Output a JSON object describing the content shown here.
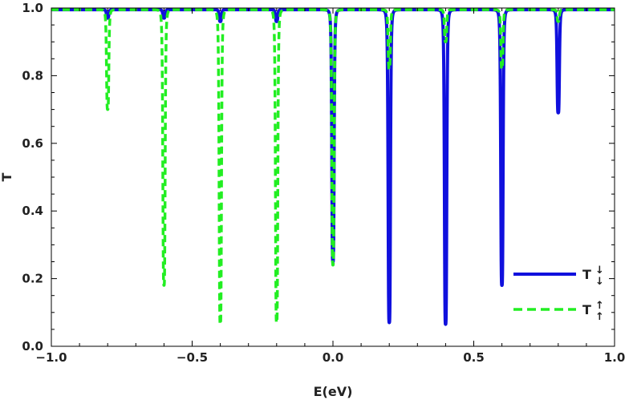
{
  "chart_data": {
    "type": "line",
    "title": "",
    "xlabel": "E(eV)",
    "ylabel": "T",
    "xlim": [
      -1.0,
      1.0
    ],
    "ylim": [
      0.0,
      1.0
    ],
    "xticks": [
      "-1.0",
      "-0.5",
      "0.0",
      "0.5",
      "1.0"
    ],
    "yticks": [
      "0.0",
      "0.2",
      "0.4",
      "0.6",
      "0.8",
      "1.0"
    ],
    "grid": false,
    "legend_position": "bottom-right",
    "baseline": 0.995,
    "series": [
      {
        "name": "T↓",
        "legend_main": "T",
        "legend_sup": "↓",
        "legend_sub": "↓",
        "color": "#1010dd",
        "style": "solid",
        "dips": [
          {
            "x": -0.8,
            "min": 0.97
          },
          {
            "x": -0.6,
            "min": 0.97
          },
          {
            "x": -0.4,
            "min": 0.96
          },
          {
            "x": -0.2,
            "min": 0.96
          },
          {
            "x": 0.0,
            "min": 0.25
          },
          {
            "x": 0.2,
            "min": 0.07
          },
          {
            "x": 0.4,
            "min": 0.065
          },
          {
            "x": 0.6,
            "min": 0.18
          },
          {
            "x": 0.8,
            "min": 0.69
          }
        ]
      },
      {
        "name": "T↑",
        "legend_main": "T",
        "legend_sup": "↑",
        "legend_sub": "↑",
        "color": "#22ee22",
        "style": "dashed",
        "dips": [
          {
            "x": -0.8,
            "min": 0.7
          },
          {
            "x": -0.6,
            "min": 0.18
          },
          {
            "x": -0.4,
            "min": 0.065
          },
          {
            "x": -0.2,
            "min": 0.07
          },
          {
            "x": 0.0,
            "min": 0.24
          },
          {
            "x": 0.2,
            "min": 0.82
          },
          {
            "x": 0.4,
            "min": 0.9
          },
          {
            "x": 0.6,
            "min": 0.82
          },
          {
            "x": 0.8,
            "min": 0.96
          }
        ]
      }
    ]
  }
}
